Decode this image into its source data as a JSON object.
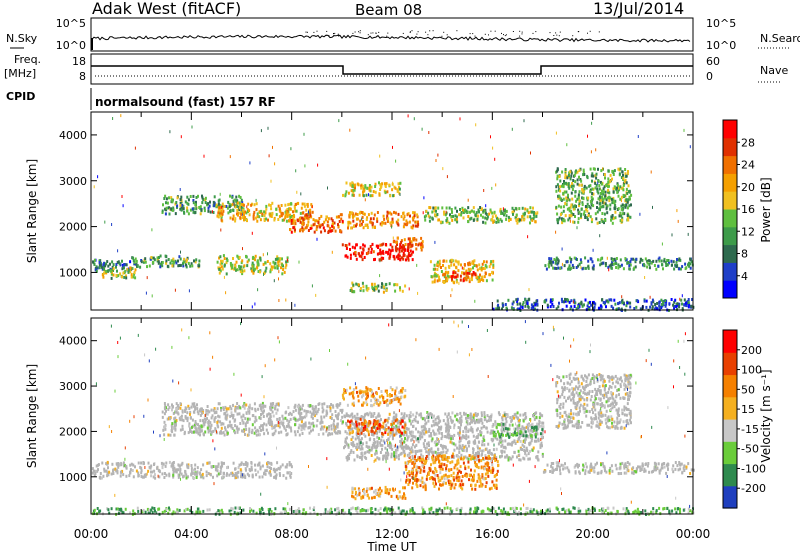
{
  "header": {
    "station": "Adak West (fitACF)",
    "beam": "Beam 08",
    "date": "13/Jul/2014"
  },
  "strip_labels": {
    "nsky": "N.Sky",
    "nsearch": "N.Search",
    "freq": "Freq.",
    "freq_unit": "[MHz]",
    "nave": "Nave",
    "cpid": "CPID",
    "program": "normalsound (fast) 157 RF"
  },
  "noise_axis": {
    "left_ticks": [
      "10^5",
      "10^0"
    ],
    "right_ticks": [
      "10^5",
      "10^0"
    ]
  },
  "freq_axis": {
    "left_ticks": [
      "18",
      "8"
    ],
    "right_ticks": [
      "60",
      "0"
    ]
  },
  "colors": {
    "power": [
      "#0000ff",
      "#1f3fc8",
      "#2e6a4e",
      "#3d9b4a",
      "#5fbf3f",
      "#f0c020",
      "#f5a000",
      "#f07000",
      "#e03000",
      "#ff0000"
    ],
    "velocity": [
      "#1f3fbf",
      "#2e8a4e",
      "#6acd3a",
      "#c8c8c8",
      "#f5b020",
      "#f58000",
      "#e84000",
      "#ff0000"
    ],
    "ground_scatter": "#b4b4b4"
  },
  "chart_data": [
    {
      "type": "heatmap",
      "panel": "power",
      "ylabel": "Slant Range [km]",
      "yticks": [
        "1000",
        "2000",
        "3000",
        "4000"
      ],
      "ylim": [
        180,
        4500
      ],
      "xlim": [
        0,
        24
      ],
      "colorbar_label": "Power [dB]",
      "colorbar_ticks": [
        "4",
        "8",
        "12",
        "16",
        "20",
        "24",
        "28"
      ],
      "regions": [
        {
          "t0": 0.0,
          "t1": 2.0,
          "r0": 1050,
          "r1": 1300,
          "level": 0.25
        },
        {
          "t0": 0.4,
          "t1": 1.8,
          "r0": 900,
          "r1": 1150,
          "level": 0.45
        },
        {
          "t0": 1.6,
          "t1": 4.3,
          "r0": 1150,
          "r1": 1400,
          "level": 0.35
        },
        {
          "t0": 5.0,
          "t1": 7.8,
          "r0": 1000,
          "r1": 1400,
          "level": 0.5
        },
        {
          "t0": 2.8,
          "t1": 6.0,
          "r0": 2300,
          "r1": 2700,
          "level": 0.35
        },
        {
          "t0": 5.0,
          "t1": 8.8,
          "r0": 2150,
          "r1": 2550,
          "level": 0.6
        },
        {
          "t0": 7.8,
          "t1": 10.0,
          "r0": 1900,
          "r1": 2300,
          "level": 0.75
        },
        {
          "t0": 10.0,
          "t1": 12.8,
          "r0": 1300,
          "r1": 1650,
          "level": 0.95
        },
        {
          "t0": 12.0,
          "t1": 13.2,
          "r0": 1500,
          "r1": 1800,
          "level": 0.8
        },
        {
          "t0": 10.2,
          "t1": 13.0,
          "r0": 2000,
          "r1": 2350,
          "level": 0.7
        },
        {
          "t0": 10.0,
          "t1": 12.3,
          "r0": 2700,
          "r1": 3000,
          "level": 0.55
        },
        {
          "t0": 13.2,
          "t1": 17.8,
          "r0": 2100,
          "r1": 2450,
          "level": 0.45
        },
        {
          "t0": 13.5,
          "t1": 16.0,
          "r0": 800,
          "r1": 1300,
          "level": 0.6
        },
        {
          "t0": 14.3,
          "t1": 15.3,
          "r0": 850,
          "r1": 1050,
          "level": 0.85
        },
        {
          "t0": 10.3,
          "t1": 12.5,
          "r0": 600,
          "r1": 800,
          "level": 0.45
        },
        {
          "t0": 18.0,
          "t1": 24.0,
          "r0": 1100,
          "r1": 1350,
          "level": 0.3
        },
        {
          "t0": 18.5,
          "t1": 21.5,
          "r0": 2100,
          "r1": 3300,
          "level": 0.4
        },
        {
          "t0": 16.0,
          "t1": 24.0,
          "r0": 200,
          "r1": 450,
          "level": 0.2
        }
      ]
    },
    {
      "type": "heatmap",
      "panel": "velocity",
      "ylabel": "Slant Range [km]",
      "yticks": [
        "1000",
        "2000",
        "3000",
        "4000"
      ],
      "ylim": [
        180,
        4500
      ],
      "xlim": [
        0,
        24
      ],
      "xticks": [
        "00:00",
        "04:00",
        "08:00",
        "12:00",
        "16:00",
        "20:00",
        "00:00"
      ],
      "xlabel": "Time UT",
      "colorbar_label": "Velocity [m s⁻¹]",
      "colorbar_ticks": [
        "200",
        "100",
        "50",
        "15",
        "-15",
        "-50",
        "-100",
        "-200"
      ],
      "regions": [
        {
          "t0": 0.0,
          "t1": 8.0,
          "r0": 1000,
          "r1": 1350,
          "level": 0.45
        },
        {
          "t0": 2.8,
          "t1": 10.0,
          "r0": 1950,
          "r1": 2650,
          "level": 0.45
        },
        {
          "t0": 10.0,
          "t1": 18.0,
          "r0": 1400,
          "r1": 2450,
          "level": 0.42
        },
        {
          "t0": 10.2,
          "t1": 12.5,
          "r0": 1950,
          "r1": 2300,
          "level": 0.75
        },
        {
          "t0": 10.0,
          "t1": 12.5,
          "r0": 2600,
          "r1": 3000,
          "level": 0.6
        },
        {
          "t0": 12.5,
          "t1": 16.2,
          "r0": 750,
          "r1": 1500,
          "level": 0.65
        },
        {
          "t0": 16.0,
          "t1": 18.0,
          "r0": 1900,
          "r1": 2200,
          "level": 0.3
        },
        {
          "t0": 18.0,
          "t1": 24.0,
          "r0": 1100,
          "r1": 1350,
          "level": 0.45
        },
        {
          "t0": 18.5,
          "t1": 21.5,
          "r0": 2100,
          "r1": 3300,
          "level": 0.45
        },
        {
          "t0": 10.3,
          "t1": 12.5,
          "r0": 550,
          "r1": 800,
          "level": 0.6
        },
        {
          "t0": 0.0,
          "t1": 24.0,
          "r0": 200,
          "r1": 350,
          "level": 0.3
        }
      ]
    }
  ]
}
